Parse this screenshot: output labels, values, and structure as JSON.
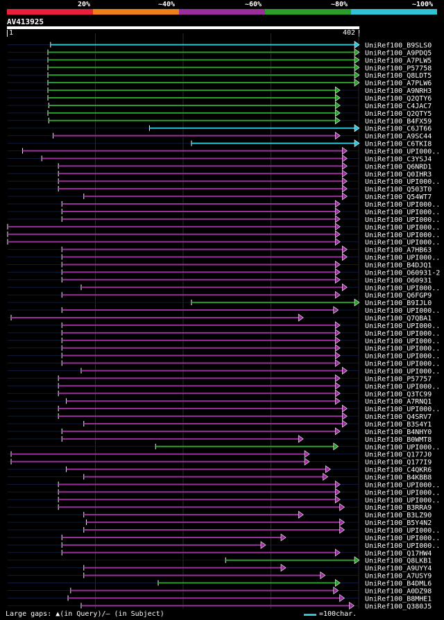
{
  "legend": {
    "labels": [
      "20%",
      "~40%",
      "~60%",
      "~80%",
      "~100%"
    ],
    "colors": [
      "#e8203a",
      "#f07f1a",
      "#9b2f9e",
      "#2aa02a",
      "#2ec4d6"
    ]
  },
  "query": {
    "name": "AV413925",
    "start": "1",
    "end": "402"
  },
  "chart_data": {
    "type": "alignment",
    "query_length": 402,
    "hits": [
      {
        "name": "UniRef100_B9SLS0",
        "start": 50,
        "end": 402,
        "level": "c",
        "arrow": true
      },
      {
        "name": "UniRef100_A9PDQ5",
        "start": 47,
        "end": 402,
        "level": "g",
        "arrow": true
      },
      {
        "name": "UniRef100_A7PLW5",
        "start": 47,
        "end": 402,
        "level": "g",
        "arrow": true
      },
      {
        "name": "UniRef100_P57758",
        "start": 47,
        "end": 402,
        "level": "g",
        "arrow": true
      },
      {
        "name": "UniRef100_Q8LDT5",
        "start": 47,
        "end": 402,
        "level": "g",
        "arrow": true
      },
      {
        "name": "UniRef100_A7PLW6",
        "start": 47,
        "end": 402,
        "level": "g",
        "arrow": true
      },
      {
        "name": "UniRef100_A9NRH3",
        "start": 47,
        "end": 380,
        "level": "g",
        "arrow": true
      },
      {
        "name": "UniRef100_Q2QTY6",
        "start": 47,
        "end": 380,
        "level": "g",
        "arrow": true
      },
      {
        "name": "UniRef100_C4JAC7",
        "start": 48,
        "end": 380,
        "level": "g",
        "arrow": true
      },
      {
        "name": "UniRef100_Q2QTY5",
        "start": 47,
        "end": 380,
        "level": "g",
        "arrow": true
      },
      {
        "name": "UniRef100_B4FX59",
        "start": 48,
        "end": 380,
        "level": "g",
        "arrow": true
      },
      {
        "name": "UniRef100_C6JT66",
        "start": 163,
        "end": 402,
        "level": "c",
        "arrow": true
      },
      {
        "name": "UniRef100_A9SC44",
        "start": 53,
        "end": 380,
        "level": "p",
        "arrow": true
      },
      {
        "name": "UniRef100_C6TKI8",
        "start": 211,
        "end": 402,
        "level": "c",
        "arrow": true
      },
      {
        "name": "UniRef100_UPI000..",
        "start": 18,
        "end": 388,
        "level": "p",
        "arrow": true
      },
      {
        "name": "UniRef100_C3YSJ4",
        "start": 40,
        "end": 388,
        "level": "p",
        "arrow": true
      },
      {
        "name": "UniRef100_Q6NRD1",
        "start": 59,
        "end": 388,
        "level": "p",
        "arrow": true
      },
      {
        "name": "UniRef100_Q0IHR3",
        "start": 59,
        "end": 388,
        "level": "p",
        "arrow": true
      },
      {
        "name": "UniRef100_UPI000..",
        "start": 59,
        "end": 388,
        "level": "p",
        "arrow": true
      },
      {
        "name": "UniRef100_Q503T0",
        "start": 59,
        "end": 388,
        "level": "p",
        "arrow": true
      },
      {
        "name": "UniRef100_Q54WT7",
        "start": 88,
        "end": 388,
        "level": "p",
        "arrow": true
      },
      {
        "name": "UniRef100_UPI000..",
        "start": 63,
        "end": 380,
        "level": "p",
        "arrow": true
      },
      {
        "name": "UniRef100_UPI000..",
        "start": 63,
        "end": 380,
        "level": "p",
        "arrow": true
      },
      {
        "name": "UniRef100_UPI000..",
        "start": 63,
        "end": 380,
        "level": "p",
        "arrow": true
      },
      {
        "name": "UniRef100_UPI000..",
        "start": 1,
        "end": 380,
        "level": "p",
        "arrow": true
      },
      {
        "name": "UniRef100_UPI000..",
        "start": 1,
        "end": 380,
        "level": "p",
        "arrow": true
      },
      {
        "name": "UniRef100_UPI000..",
        "start": 1,
        "end": 380,
        "level": "p",
        "arrow": true
      },
      {
        "name": "UniRef100_A7HB63",
        "start": 63,
        "end": 388,
        "level": "p",
        "arrow": true
      },
      {
        "name": "UniRef100_UPI000..",
        "start": 63,
        "end": 388,
        "level": "p",
        "arrow": true
      },
      {
        "name": "UniRef100_B4DJQ1",
        "start": 63,
        "end": 380,
        "level": "p",
        "arrow": true
      },
      {
        "name": "UniRef100_O60931-2",
        "start": 63,
        "end": 380,
        "level": "p",
        "arrow": true
      },
      {
        "name": "UniRef100_O60931",
        "start": 63,
        "end": 380,
        "level": "p",
        "arrow": true
      },
      {
        "name": "UniRef100_UPI000..",
        "start": 85,
        "end": 388,
        "level": "p",
        "arrow": true
      },
      {
        "name": "UniRef100_Q6FGP9",
        "start": 63,
        "end": 380,
        "level": "p",
        "arrow": true
      },
      {
        "name": "UniRef100_B9IJL0",
        "start": 211,
        "end": 402,
        "level": "g",
        "arrow": true
      },
      {
        "name": "UniRef100_UPI000..",
        "start": 63,
        "end": 378,
        "level": "p",
        "arrow": true
      },
      {
        "name": "UniRef100_Q7QBA1",
        "start": 5,
        "end": 338,
        "level": "p",
        "arrow": true
      },
      {
        "name": "UniRef100_UPI000..",
        "start": 63,
        "end": 380,
        "level": "p",
        "arrow": true
      },
      {
        "name": "UniRef100_UPI000..",
        "start": 63,
        "end": 380,
        "level": "p",
        "arrow": true
      },
      {
        "name": "UniRef100_UPI000..",
        "start": 63,
        "end": 380,
        "level": "p",
        "arrow": true
      },
      {
        "name": "UniRef100_UPI000..",
        "start": 63,
        "end": 380,
        "level": "p",
        "arrow": true
      },
      {
        "name": "UniRef100_UPI000..",
        "start": 63,
        "end": 380,
        "level": "p",
        "arrow": true
      },
      {
        "name": "UniRef100_UPI000..",
        "start": 63,
        "end": 380,
        "level": "p",
        "arrow": true
      },
      {
        "name": "UniRef100_UPI000..",
        "start": 85,
        "end": 388,
        "level": "p",
        "arrow": true
      },
      {
        "name": "UniRef100_P57757",
        "start": 59,
        "end": 380,
        "level": "p",
        "arrow": true
      },
      {
        "name": "UniRef100_UPI000..",
        "start": 59,
        "end": 380,
        "level": "p",
        "arrow": true
      },
      {
        "name": "UniRef100_Q3TC99",
        "start": 59,
        "end": 380,
        "level": "p",
        "arrow": true
      },
      {
        "name": "UniRef100_A7RNQ1",
        "start": 68,
        "end": 380,
        "level": "p",
        "arrow": true
      },
      {
        "name": "UniRef100_UPI000..",
        "start": 59,
        "end": 388,
        "level": "p",
        "arrow": true
      },
      {
        "name": "UniRef100_Q4SRV7",
        "start": 59,
        "end": 388,
        "level": "p",
        "arrow": true
      },
      {
        "name": "UniRef100_B3S4Y1",
        "start": 88,
        "end": 388,
        "level": "p",
        "arrow": true
      },
      {
        "name": "UniRef100_B4NHY0",
        "start": 63,
        "end": 380,
        "level": "p",
        "arrow": true
      },
      {
        "name": "UniRef100_B0WMT8",
        "start": 63,
        "end": 338,
        "level": "p",
        "arrow": true
      },
      {
        "name": "UniRef100_UPI000..",
        "start": 170,
        "end": 378,
        "level": "g",
        "arrow": true
      },
      {
        "name": "UniRef100_Q177J0",
        "start": 5,
        "end": 345,
        "level": "p",
        "arrow": true
      },
      {
        "name": "UniRef100_Q177I9",
        "start": 5,
        "end": 345,
        "level": "p",
        "arrow": true
      },
      {
        "name": "UniRef100_C4QKR6",
        "start": 68,
        "end": 369,
        "level": "p",
        "arrow": true
      },
      {
        "name": "UniRef100_B4KBB8",
        "start": 88,
        "end": 366,
        "level": "p",
        "arrow": true
      },
      {
        "name": "UniRef100_UPI000..",
        "start": 59,
        "end": 380,
        "level": "p",
        "arrow": true
      },
      {
        "name": "UniRef100_UPI000..",
        "start": 59,
        "end": 380,
        "level": "p",
        "arrow": true
      },
      {
        "name": "UniRef100_UPI000..",
        "start": 59,
        "end": 380,
        "level": "p",
        "arrow": true
      },
      {
        "name": "UniRef100_B3RRA9",
        "start": 59,
        "end": 385,
        "level": "p",
        "arrow": true
      },
      {
        "name": "UniRef100_B3LZ90",
        "start": 88,
        "end": 338,
        "level": "p",
        "arrow": true
      },
      {
        "name": "UniRef100_B5Y4N2",
        "start": 91,
        "end": 385,
        "level": "p",
        "arrow": true
      },
      {
        "name": "UniRef100_UPI000..",
        "start": 88,
        "end": 385,
        "level": "p",
        "arrow": true
      },
      {
        "name": "UniRef100_UPI000..",
        "start": 63,
        "end": 318,
        "level": "p",
        "arrow": true
      },
      {
        "name": "UniRef100_UPI000..",
        "start": 63,
        "end": 295,
        "level": "p",
        "arrow": true
      },
      {
        "name": "UniRef100_Q17HW4",
        "start": 63,
        "end": 380,
        "level": "p",
        "arrow": true
      },
      {
        "name": "UniRef100_Q8LKB1",
        "start": 250,
        "end": 402,
        "level": "g",
        "arrow": true
      },
      {
        "name": "UniRef100_A9UYY4",
        "start": 88,
        "end": 318,
        "level": "p",
        "arrow": true
      },
      {
        "name": "UniRef100_A7USY9",
        "start": 88,
        "end": 363,
        "level": "p",
        "arrow": true
      },
      {
        "name": "UniRef100_B4DML6",
        "start": 173,
        "end": 380,
        "level": "g",
        "arrow": true
      },
      {
        "name": "UniRef100_A0DZ98",
        "start": 73,
        "end": 378,
        "level": "p",
        "arrow": true
      },
      {
        "name": "UniRef100_B8MHE1",
        "start": 70,
        "end": 385,
        "level": "p",
        "arrow": true
      },
      {
        "name": "UniRef100_Q380J5",
        "start": 85,
        "end": 396,
        "level": "p",
        "arrow": true
      }
    ]
  },
  "footer": {
    "gaps_text": "Large gaps: ▲(in Query)/— (in Subject)",
    "scale_text": "=100char."
  }
}
